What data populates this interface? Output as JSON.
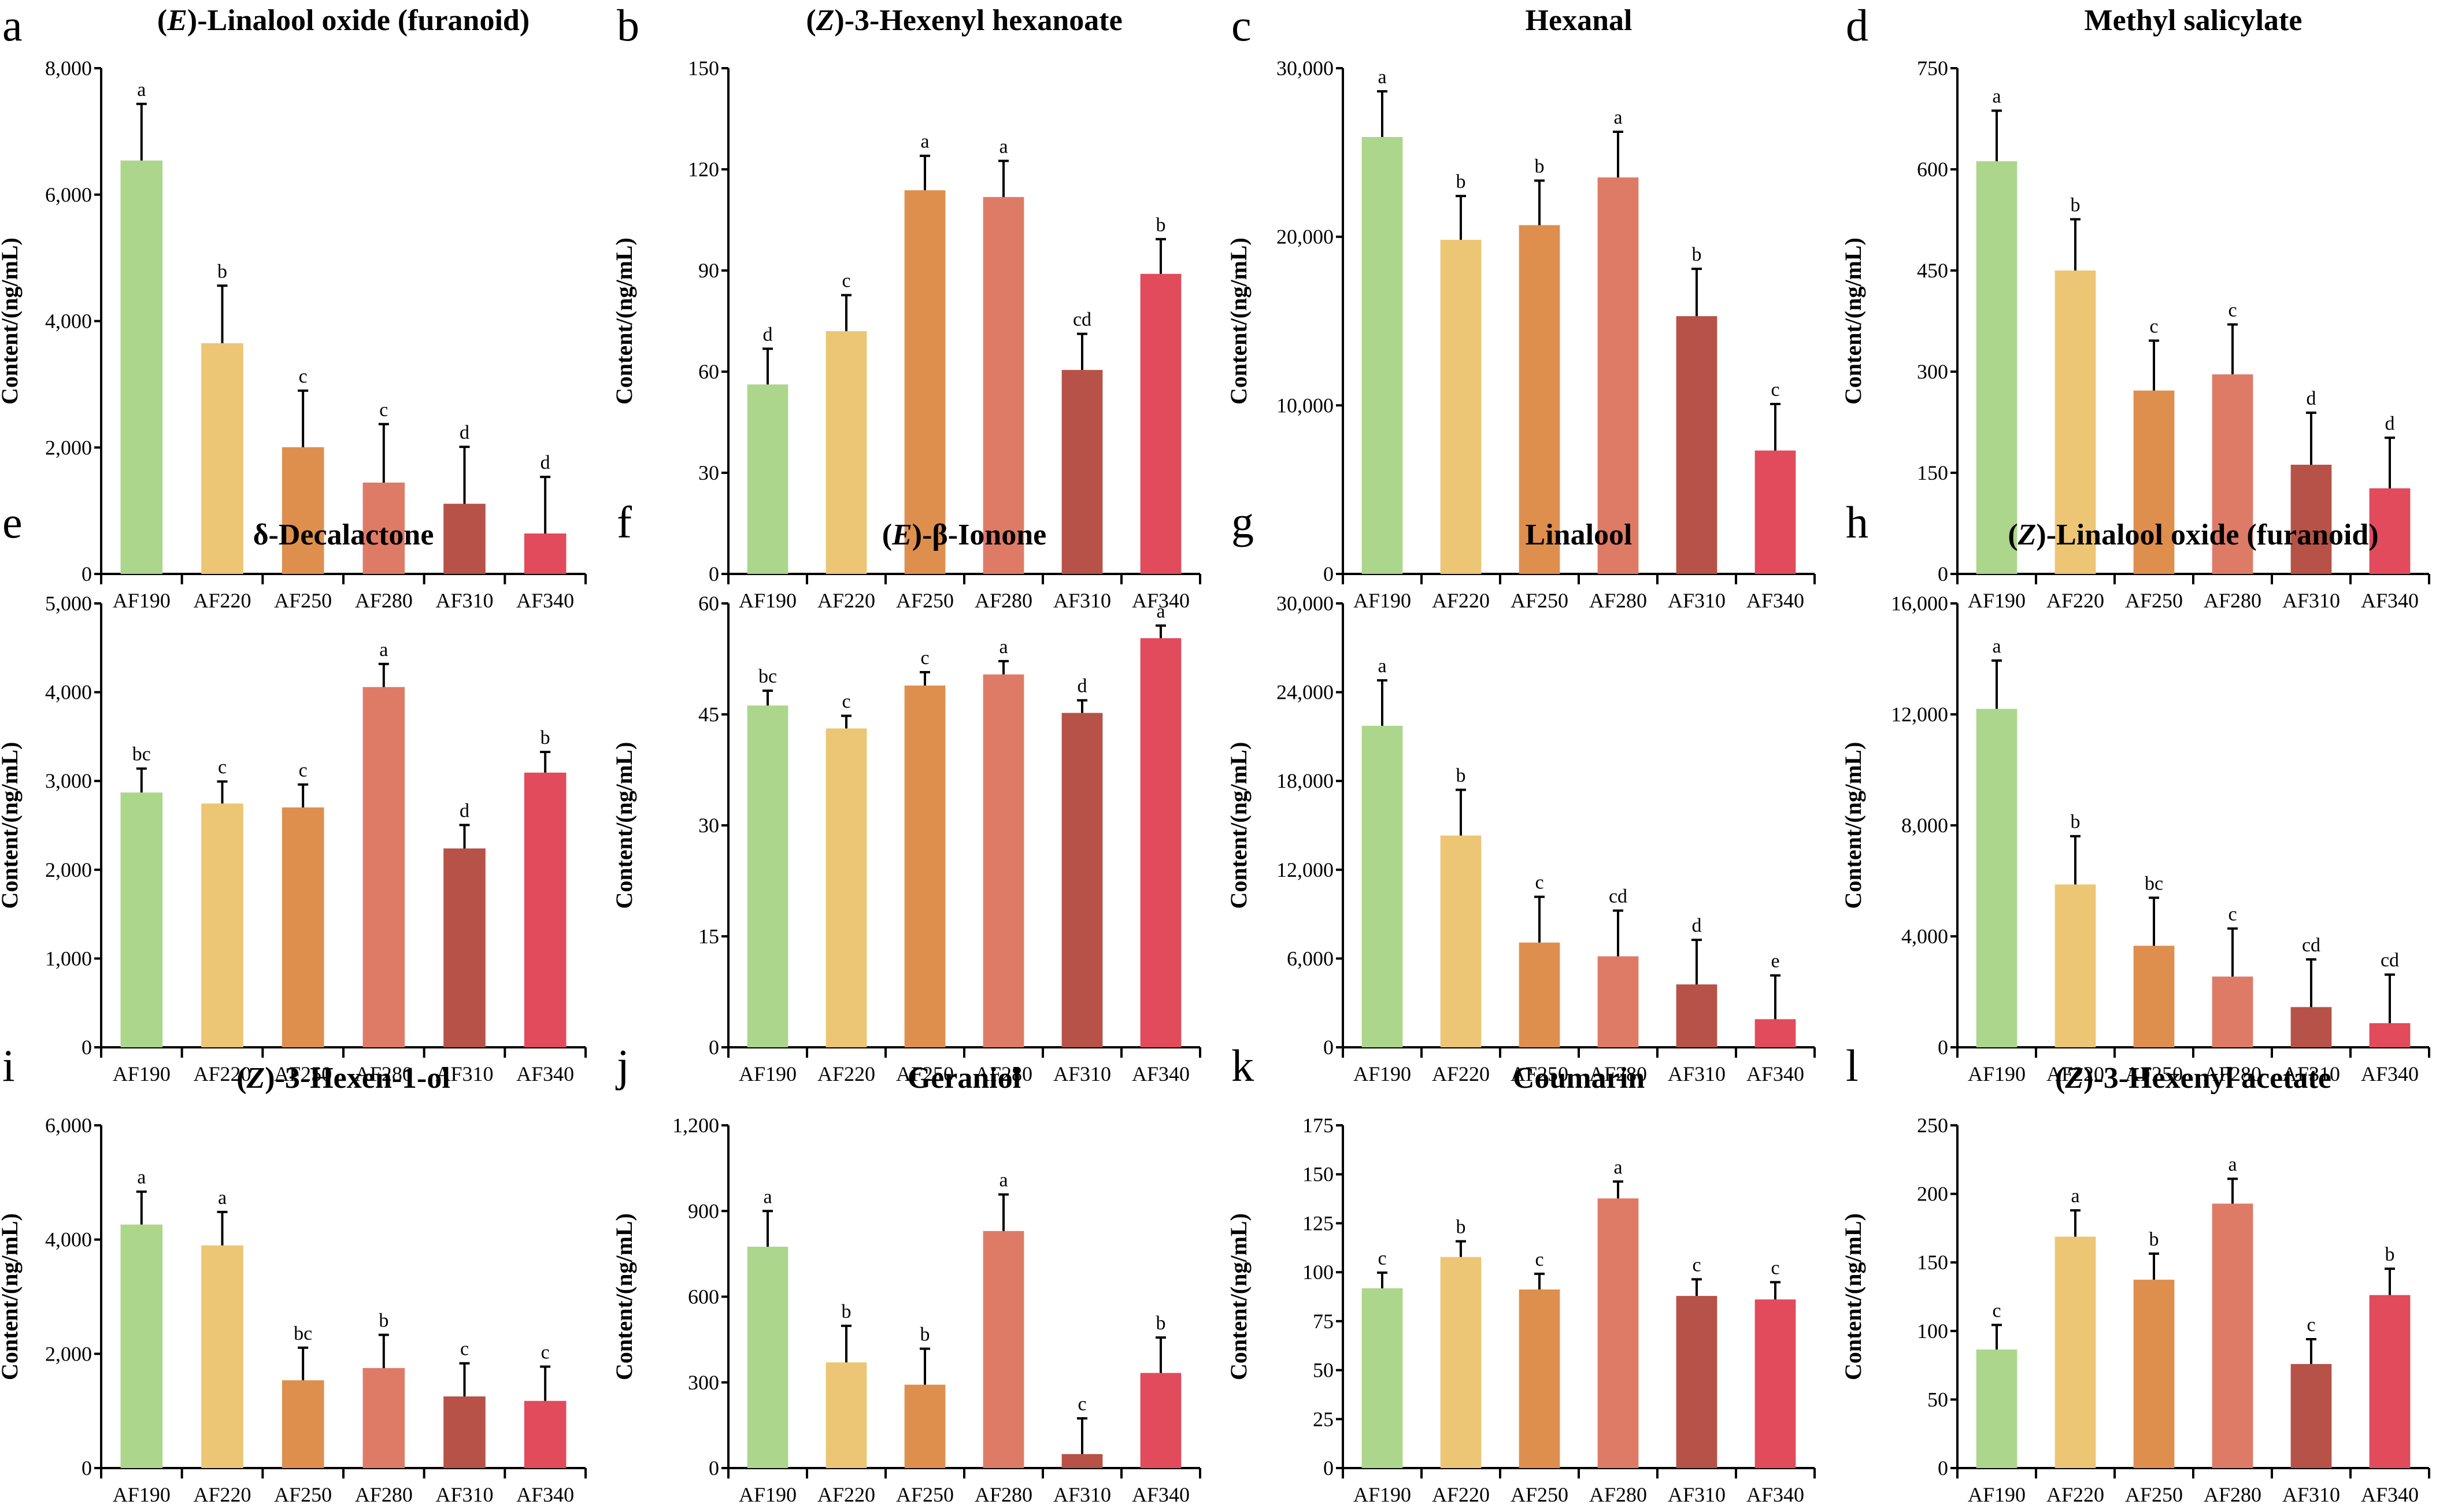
{
  "chart_data": {
    "type": "bar",
    "layout": "grid 3 rows x 4 columns",
    "categories": [
      "AF190",
      "AF220",
      "AF250",
      "AF280",
      "AF310",
      "AF340"
    ],
    "colors": [
      "#abd68b",
      "#ecc674",
      "#de8f4e",
      "#de7b67",
      "#b65247",
      "#e14b5c"
    ],
    "ylabel": "Content/(ng/mL)",
    "panels": [
      {
        "label": "a",
        "title_prefix": "(",
        "title_italic": "E",
        "title_rest": ")-Linalool oxide (furanoid)",
        "ylim": [
          0,
          8000
        ],
        "yticks": [
          0,
          2000,
          4000,
          6000,
          8000
        ],
        "ytick_labels": [
          "0",
          "2,000",
          "4,000",
          "6,000",
          "8,000"
        ],
        "values": [
          6540,
          3650,
          2005,
          1445,
          1110,
          640
        ],
        "errors": [
          895,
          910,
          895,
          925,
          900,
          895
        ],
        "significance": [
          "a",
          "b",
          "c",
          "c",
          "d",
          "d"
        ]
      },
      {
        "label": "b",
        "title_prefix": "(",
        "title_italic": "Z",
        "title_rest": ")-3-Hexenyl hexanoate",
        "ylim": [
          0,
          150
        ],
        "yticks": [
          0,
          30,
          60,
          90,
          120,
          150
        ],
        "ytick_labels": [
          "0",
          "30",
          "60",
          "90",
          "120",
          "150"
        ],
        "values": [
          56.2,
          72,
          113.8,
          111.8,
          60.5,
          89
        ],
        "errors": [
          10.6,
          10.7,
          10.2,
          10.7,
          10.7,
          10.3
        ],
        "significance": [
          "d",
          "c",
          "a",
          "a",
          "cd",
          "b"
        ]
      },
      {
        "label": "c",
        "title_prefix": "",
        "title_italic": "",
        "title_rest": "Hexanal",
        "ylim": [
          0,
          30000
        ],
        "yticks": [
          0,
          10000,
          20000,
          30000
        ],
        "ytick_labels": [
          "0",
          "10,000",
          "20,000",
          "30,000"
        ],
        "values": [
          25920,
          19820,
          20690,
          23520,
          15290,
          7320
        ],
        "errors": [
          2710,
          2600,
          2640,
          2710,
          2810,
          2760
        ],
        "significance": [
          "a",
          "b",
          "b",
          "a",
          "b",
          "c"
        ]
      },
      {
        "label": "d",
        "title_prefix": "",
        "title_italic": "",
        "title_rest": "Methyl salicylate",
        "ylim": [
          0,
          750
        ],
        "yticks": [
          0,
          150,
          300,
          450,
          600,
          750
        ],
        "ytick_labels": [
          "0",
          "150",
          "300",
          "450",
          "600",
          "750"
        ],
        "values": [
          612,
          450,
          272,
          296,
          162,
          127
        ],
        "errors": [
          75,
          76,
          74,
          74,
          77,
          75
        ],
        "significance": [
          "a",
          "b",
          "c",
          "c",
          "d",
          "d"
        ]
      },
      {
        "label": "e",
        "title_prefix": "",
        "title_italic": "",
        "title_rest": "δ-Decalactone",
        "ylim": [
          0,
          5000
        ],
        "yticks": [
          0,
          1000,
          2000,
          3000,
          4000,
          5000
        ],
        "ytick_labels": [
          "0",
          "1,000",
          "2,000",
          "3,000",
          "4,000",
          "5,000"
        ],
        "values": [
          2870,
          2746,
          2702,
          4058,
          2240,
          3094
        ],
        "errors": [
          270,
          248,
          258,
          260,
          264,
          233
        ],
        "significance": [
          "bc",
          "c",
          "c",
          "a",
          "d",
          "b"
        ]
      },
      {
        "label": "f",
        "title_prefix": "(",
        "title_italic": "E",
        "title_rest": ")-β-Ionone",
        "ylim": [
          0,
          60
        ],
        "yticks": [
          0,
          15,
          30,
          45,
          60
        ],
        "ytick_labels": [
          "0",
          "15",
          "30",
          "45",
          "60"
        ],
        "values": [
          46.2,
          43.1,
          48.9,
          50.4,
          45.2,
          55.3
        ],
        "errors": [
          2.0,
          1.7,
          1.8,
          1.8,
          1.7,
          1.7
        ],
        "significance": [
          "bc",
          "c",
          "c",
          "a",
          "d",
          "a"
        ]
      },
      {
        "label": "g",
        "title_prefix": "",
        "title_italic": "",
        "title_rest": "Linalool",
        "ylim": [
          0,
          30000
        ],
        "yticks": [
          0,
          6000,
          12000,
          18000,
          24000,
          30000
        ],
        "ytick_labels": [
          "0",
          "6,000",
          "12,000",
          "18,000",
          "24,000",
          "30,000"
        ],
        "values": [
          21730,
          14310,
          7080,
          6150,
          4250,
          1900
        ],
        "errors": [
          3070,
          3090,
          3090,
          3090,
          3010,
          2960
        ],
        "significance": [
          "a",
          "b",
          "c",
          "cd",
          "d",
          "e"
        ]
      },
      {
        "label": "h",
        "title_prefix": "(",
        "title_italic": "Z",
        "title_rest": ")-Linalool oxide (furanoid)",
        "ylim": [
          0,
          16000
        ],
        "yticks": [
          0,
          4000,
          8000,
          12000,
          16000
        ],
        "ytick_labels": [
          "0",
          "4,000",
          "8,000",
          "12,000",
          "16,000"
        ],
        "values": [
          12200,
          5870,
          3660,
          2550,
          1450,
          870
        ],
        "errors": [
          1740,
          1740,
          1730,
          1730,
          1720,
          1750
        ],
        "significance": [
          "a",
          "b",
          "bc",
          "c",
          "cd",
          "cd"
        ]
      },
      {
        "label": "i",
        "title_prefix": "(",
        "title_italic": "Z",
        "title_rest": ")-3-Hexen-1-ol",
        "ylim": [
          0,
          6000
        ],
        "yticks": [
          0,
          2000,
          4000,
          6000
        ],
        "ytick_labels": [
          "0",
          "2,000",
          "4,000",
          "6,000"
        ],
        "values": [
          4263,
          3898,
          1537,
          1751,
          1254,
          1176
        ],
        "errors": [
          576,
          585,
          570,
          581,
          580,
          600
        ],
        "significance": [
          "a",
          "a",
          "bc",
          "b",
          "c",
          "c"
        ]
      },
      {
        "label": "j",
        "title_prefix": "",
        "title_italic": "",
        "title_rest": "Geraniol",
        "ylim": [
          0,
          1200
        ],
        "yticks": [
          0,
          300,
          600,
          900,
          1200
        ],
        "ytick_labels": [
          "0",
          "300",
          "600",
          "900",
          "1,200"
        ],
        "values": [
          775,
          370,
          292,
          830,
          49,
          333
        ],
        "errors": [
          125,
          128,
          126,
          128,
          125,
          124
        ],
        "significance": [
          "a",
          "b",
          "b",
          "a",
          "c",
          "b"
        ]
      },
      {
        "label": "k",
        "title_prefix": "",
        "title_italic": "",
        "title_rest": "Coumarin",
        "ylim": [
          0,
          175
        ],
        "yticks": [
          0,
          25,
          50,
          75,
          100,
          125,
          150,
          175
        ],
        "ytick_labels": [
          "0",
          "25",
          "50",
          "75",
          "100",
          "125",
          "150",
          "175"
        ],
        "values": [
          91.8,
          107.8,
          91.2,
          137.7,
          87.9,
          86.1
        ],
        "errors": [
          8.0,
          8.0,
          8.0,
          8.6,
          8.5,
          8.8
        ],
        "significance": [
          "c",
          "b",
          "c",
          "a",
          "c",
          "c"
        ]
      },
      {
        "label": "l",
        "title_prefix": "(",
        "title_italic": "Z",
        "title_rest": ")-3-Hexenyl acetate",
        "ylim": [
          0,
          250
        ],
        "yticks": [
          0,
          50,
          100,
          150,
          200,
          250
        ],
        "ytick_labels": [
          "0",
          "50",
          "100",
          "150",
          "200",
          "250"
        ],
        "values": [
          86.5,
          168.8,
          137.4,
          192.9,
          75.9,
          126.2
        ],
        "errors": [
          17.9,
          19.2,
          19.0,
          18.1,
          18.1,
          19.2
        ],
        "significance": [
          "c",
          "a",
          "b",
          "a",
          "c",
          "b"
        ]
      }
    ]
  }
}
